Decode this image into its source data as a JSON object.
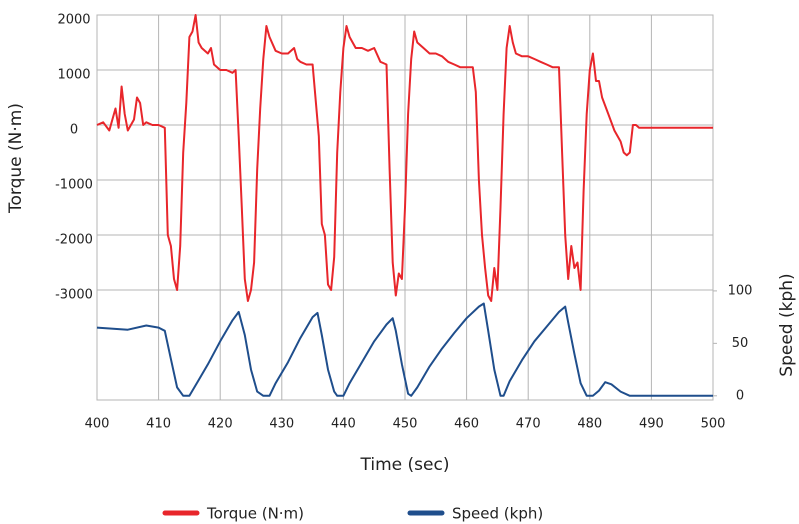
{
  "chart_data": {
    "type": "line",
    "xlabel": "Time (sec)",
    "ylabel": "Torque (N·m)",
    "y2label": "Speed (kph)",
    "xlim": [
      400,
      500
    ],
    "xticks": [
      400,
      410,
      420,
      430,
      440,
      450,
      460,
      470,
      480,
      490,
      500
    ],
    "ylim": [
      -5000,
      2000
    ],
    "yticks": [
      2000,
      1000,
      0,
      -1000,
      -2000,
      -3000
    ],
    "y2lim": [
      -4,
      363
    ],
    "y2ticks": [
      0,
      50,
      100
    ],
    "grid": true,
    "legend": "bottom",
    "series": [
      {
        "name": "Torque (N·m)",
        "color": "#e8262b",
        "x": [
          400,
          401,
          402,
          403,
          403.5,
          404,
          404.5,
          405,
          406,
          406.5,
          407,
          407.5,
          408,
          409,
          410,
          411,
          411.5,
          412,
          412.5,
          413,
          413.5,
          414,
          414.5,
          415,
          415.5,
          416,
          416.5,
          417,
          418,
          418.5,
          419,
          420,
          421,
          422,
          422.5,
          423,
          423.5,
          424,
          424.5,
          425,
          425.5,
          426,
          426.5,
          427,
          427.5,
          428,
          429,
          430,
          431,
          432,
          432.5,
          433,
          434,
          435,
          436,
          436.5,
          437,
          437.5,
          438,
          438.5,
          439,
          439.5,
          440,
          440.5,
          441,
          442,
          443,
          444,
          445,
          446,
          447,
          447.5,
          448,
          448.5,
          449,
          449.5,
          450,
          450.5,
          451,
          451.5,
          452,
          453,
          454,
          455,
          456,
          457,
          458,
          459,
          460,
          461,
          461.5,
          462,
          462.5,
          463,
          463.5,
          464,
          464.5,
          465,
          465.5,
          466,
          466.5,
          467,
          467.5,
          468,
          469,
          470,
          471,
          472,
          473,
          474,
          475,
          475.5,
          476,
          476.5,
          477,
          477.5,
          478,
          478.5,
          479,
          479.5,
          480,
          480.5,
          481,
          481.5,
          482,
          483,
          484,
          485,
          485.5,
          486,
          486.5,
          487,
          487.5,
          488,
          490,
          495,
          500
        ],
        "values": [
          0,
          50,
          -100,
          300,
          -50,
          700,
          200,
          -100,
          100,
          500,
          400,
          0,
          50,
          0,
          0,
          -50,
          -2000,
          -2200,
          -2800,
          -3000,
          -2200,
          -500,
          400,
          1600,
          1700,
          2000,
          1500,
          1400,
          1300,
          1400,
          1100,
          1000,
          1000,
          950,
          1000,
          -200,
          -1500,
          -2800,
          -3200,
          -3000,
          -2500,
          -800,
          300,
          1200,
          1800,
          1600,
          1350,
          1300,
          1300,
          1400,
          1200,
          1150,
          1100,
          1100,
          -200,
          -1800,
          -2000,
          -2900,
          -3000,
          -2400,
          -500,
          600,
          1400,
          1800,
          1600,
          1400,
          1400,
          1350,
          1400,
          1150,
          1100,
          -800,
          -2500,
          -3100,
          -2700,
          -2800,
          -1500,
          200,
          1200,
          1700,
          1500,
          1400,
          1300,
          1300,
          1250,
          1150,
          1100,
          1050,
          1050,
          1050,
          600,
          -1000,
          -2000,
          -2600,
          -3100,
          -3200,
          -2600,
          -3000,
          -1500,
          200,
          1400,
          1800,
          1500,
          1300,
          1250,
          1250,
          1200,
          1150,
          1100,
          1050,
          1050,
          -500,
          -2000,
          -2800,
          -2200,
          -2600,
          -2500,
          -3000,
          -1200,
          200,
          1000,
          1300,
          800,
          800,
          500,
          200,
          -100,
          -300,
          -500,
          -550,
          -500,
          0,
          0,
          -50,
          -50,
          -50,
          -50
        ]
      },
      {
        "name": "Speed (kph)",
        "color": "#1f4e8c",
        "axis": "y2",
        "x": [
          400,
          405,
          408,
          410,
          411,
          412,
          413,
          414,
          415,
          416,
          418,
          420,
          422,
          423,
          424,
          425,
          426,
          427,
          428,
          429,
          431,
          433,
          435,
          435.8,
          436.5,
          437.5,
          438.5,
          439,
          440,
          441,
          443,
          445,
          447,
          448,
          448.5,
          449.5,
          450.5,
          451,
          452,
          454,
          456,
          458,
          460,
          462,
          462.8,
          463.5,
          464.5,
          465.5,
          466,
          467,
          469,
          471,
          473,
          475,
          476,
          476.5,
          477.5,
          478.5,
          479.5,
          480.5,
          481.5,
          482.5,
          483.5,
          485,
          486.5,
          490,
          500
        ],
        "values": [
          65,
          63,
          67,
          65,
          62,
          35,
          8,
          0,
          0,
          10,
          30,
          52,
          72,
          80,
          58,
          25,
          4,
          0,
          0,
          12,
          32,
          55,
          75,
          79,
          58,
          25,
          4,
          0,
          0,
          12,
          32,
          52,
          68,
          74,
          62,
          30,
          2,
          0,
          8,
          28,
          45,
          60,
          74,
          85,
          88,
          62,
          25,
          0,
          0,
          14,
          34,
          52,
          66,
          80,
          85,
          70,
          40,
          12,
          0,
          0,
          5,
          13,
          11,
          4,
          0,
          0,
          0
        ]
      }
    ]
  }
}
